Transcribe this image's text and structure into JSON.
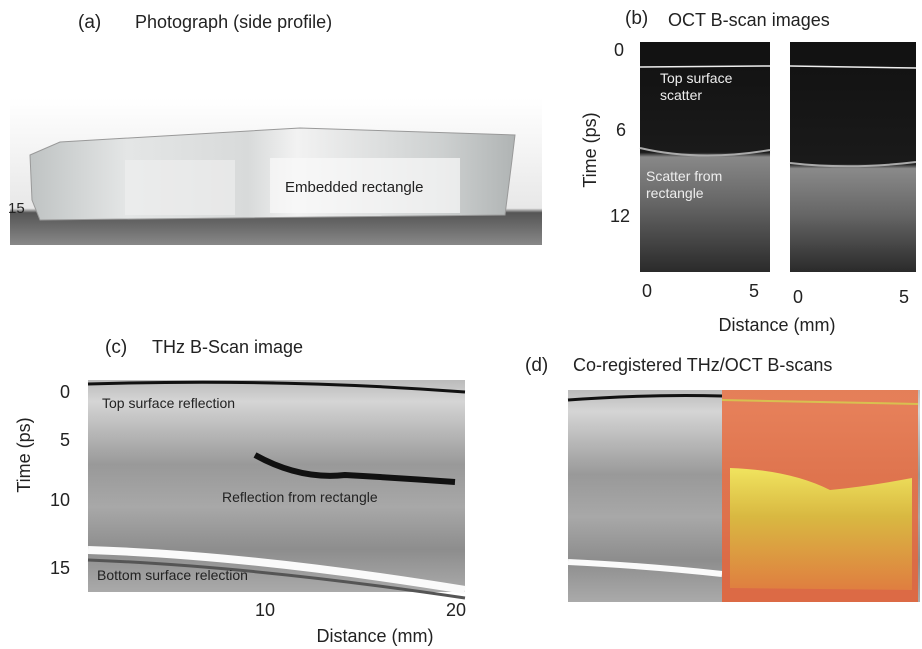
{
  "panels": [
    {
      "label": "(a)",
      "title": "Photograph (side profile)",
      "annotations": [
        "Embedded rectangle",
        "15"
      ]
    },
    {
      "label": "(b)",
      "title": "OCT B-scan images",
      "y_axis_label": "Time (ps)",
      "y_ticks": [
        "0",
        "6",
        "12"
      ],
      "x_axis_label": "Distance (mm)",
      "x_ticks_left": [
        "0",
        "5"
      ],
      "x_ticks_right": [
        "0",
        "5"
      ],
      "annotations": [
        [
          "Top surface",
          "scatter"
        ],
        [
          "Scatter from",
          "rectangle"
        ]
      ]
    },
    {
      "label": "(c)",
      "title": "THz B-Scan image",
      "y_axis_label": "Time (ps)",
      "y_ticks": [
        "0",
        "5",
        "10",
        "15"
      ],
      "x_axis_label": "Distance (mm)",
      "x_ticks": [
        "10",
        "20"
      ],
      "annotations": [
        "Top surface reflection",
        "Reflection from rectangle",
        "Bottom surface relection"
      ]
    },
    {
      "label": "(d)",
      "title": "Co-registered THz/OCT B-scans"
    }
  ]
}
